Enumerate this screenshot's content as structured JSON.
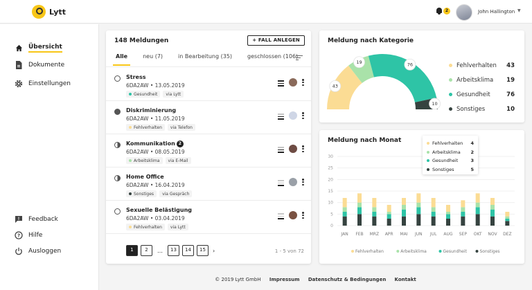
{
  "app": {
    "name": "Lytt"
  },
  "header": {
    "notification_count": "2",
    "user_name": "John Hallington"
  },
  "colors": {
    "yellow": "#f8c617",
    "fehlverhalten": "#fbdc94",
    "arbeitsklima": "#a9e2a9",
    "gesundheit": "#2ec4a6",
    "sonstiges": "#364340"
  },
  "sidebar": {
    "items": [
      {
        "label": "Übersicht",
        "icon": "home-icon"
      },
      {
        "label": "Dokumente",
        "icon": "document-icon"
      },
      {
        "label": "Einstellungen",
        "icon": "gear-icon"
      }
    ],
    "bottom_items": [
      {
        "label": "Feedback",
        "icon": "feedback-icon"
      },
      {
        "label": "Hilfe",
        "icon": "help-icon"
      },
      {
        "label": "Ausloggen",
        "icon": "power-icon"
      }
    ]
  },
  "messages_panel": {
    "title": "148 Meldungen",
    "new_button": "+ FALL ANLEGEN",
    "tabs": [
      "Alle",
      "neu (7)",
      "in Bearbeitung (35)",
      "geschlossen (106)"
    ],
    "items": [
      {
        "title": "Stress",
        "meta": "6DA2AW • 13.05.2019",
        "category": "Gesundheit",
        "channel": "via Lytt",
        "status": "open"
      },
      {
        "title": "Diskriminierung",
        "meta": "6DA2AW • 11.05.2019",
        "category": "Fehlverhalten",
        "channel": "via Telefon",
        "status": "closed"
      },
      {
        "title": "Kommunikation",
        "badge": "2",
        "meta": "6DA2AW • 08.05.2019",
        "category": "Arbeitsklima",
        "channel": "via E-Mail",
        "status": "progress"
      },
      {
        "title": "Home Office",
        "meta": "6DA2AW • 16.04.2019",
        "category": "Sonstiges",
        "channel": "via Gespräch",
        "status": "progress"
      },
      {
        "title": "Sexuelle Belästigung",
        "meta": "6DA2AW • 03.04.2019",
        "category": "Fehlverhalten",
        "channel": "via Lytt",
        "status": "open"
      }
    ],
    "pagination": {
      "pages": [
        "1",
        "2",
        "…",
        "13",
        "14",
        "15"
      ],
      "next": "›",
      "info": "1 - 5 von 72"
    }
  },
  "kategorie_panel": {
    "title": "Meldung nach Kategorie"
  },
  "monat_panel": {
    "title": "Meldung nach Monat"
  },
  "chart_data": [
    {
      "type": "pie",
      "variant": "semi-donut",
      "title": "Meldung nach Kategorie",
      "categories": [
        "Fehlverhalten",
        "Arbeitsklima",
        "Gesundheit",
        "Sonstiges"
      ],
      "values": [
        43,
        19,
        76,
        10
      ],
      "legend": "right"
    },
    {
      "type": "bar",
      "stacked": true,
      "title": "Meldung nach Monat",
      "categories": [
        "JAN",
        "FEB",
        "MRZ",
        "APR",
        "MAI",
        "JUN",
        "JUL",
        "AUG",
        "SEP",
        "OKT",
        "NOV",
        "DEZ"
      ],
      "ylim": [
        0,
        30
      ],
      "yticks": [
        0,
        5,
        10,
        15,
        20,
        25,
        30
      ],
      "grid": true,
      "legend": "bottom",
      "series": [
        {
          "name": "Sonstiges",
          "values": [
            4,
            5,
            4,
            3,
            4,
            5,
            4,
            3,
            4,
            5,
            4,
            2
          ]
        },
        {
          "name": "Gesundheit",
          "values": [
            2,
            3,
            2,
            2,
            3,
            3,
            2,
            2,
            2,
            3,
            3,
            1
          ]
        },
        {
          "name": "Arbeitsklima",
          "values": [
            2,
            2,
            2,
            1,
            2,
            2,
            2,
            1,
            2,
            2,
            2,
            1
          ]
        },
        {
          "name": "Fehlverhalten",
          "values": [
            4,
            4,
            4,
            3,
            3,
            4,
            4,
            3,
            3,
            4,
            3,
            2
          ]
        }
      ],
      "tooltip": {
        "rows": [
          {
            "name": "Fehlverhalten",
            "value": "4"
          },
          {
            "name": "Arbeitsklima",
            "value": "2"
          },
          {
            "name": "Gesundheit",
            "value": "3"
          },
          {
            "name": "Sonstiges",
            "value": "5"
          }
        ]
      }
    }
  ],
  "footer": {
    "copyright": "© 2019 Lytt GmbH",
    "links": [
      "Impressum",
      "Datenschutz & Bedingungen",
      "Kontakt"
    ]
  }
}
